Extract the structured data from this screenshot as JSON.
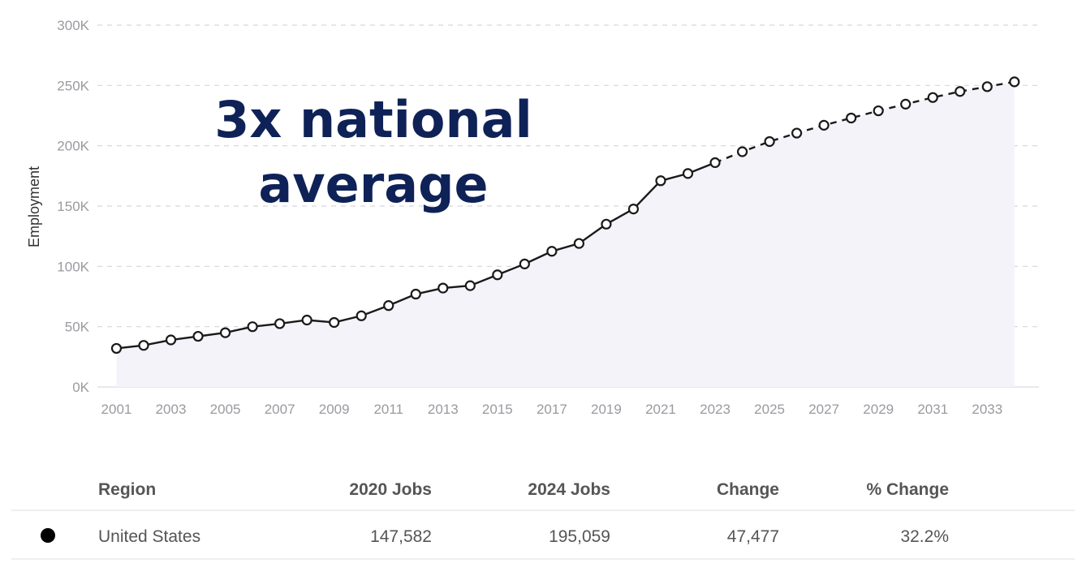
{
  "chart_data": {
    "type": "line",
    "ylabel": "Employment",
    "ylim": [
      0,
      300000
    ],
    "yticks": [
      "0K",
      "50K",
      "100K",
      "150K",
      "200K",
      "250K",
      "300K"
    ],
    "xticks": [
      "2001",
      "2003",
      "2005",
      "2007",
      "2009",
      "2011",
      "2013",
      "2015",
      "2017",
      "2019",
      "2021",
      "2023",
      "2025",
      "2027",
      "2029",
      "2031",
      "2033"
    ],
    "grid": true,
    "annotation": [
      "3x national",
      "average"
    ],
    "series": [
      {
        "style": "solid",
        "x": [
          2001,
          2002,
          2003,
          2004,
          2005,
          2006,
          2007,
          2008,
          2009,
          2010,
          2011,
          2012,
          2013,
          2014,
          2015,
          2016,
          2017,
          2018,
          2019,
          2020,
          2021,
          2022,
          2023
        ],
        "values": [
          32000,
          34500,
          39000,
          42000,
          45000,
          50000,
          52500,
          55500,
          53500,
          59000,
          67500,
          77000,
          82000,
          84000,
          93000,
          102000,
          112500,
          119000,
          135000,
          147582,
          171000,
          177000,
          186000
        ]
      },
      {
        "style": "dashed",
        "x": [
          2023,
          2024,
          2025,
          2026,
          2027,
          2028,
          2029,
          2030,
          2031,
          2032,
          2033,
          2034
        ],
        "values": [
          186000,
          195059,
          203500,
          210500,
          217000,
          223000,
          229000,
          234500,
          240000,
          245000,
          249000,
          253000
        ]
      }
    ]
  },
  "table": {
    "headers": {
      "region": "Region",
      "jobs_2020": "2020 Jobs",
      "jobs_2024": "2024 Jobs",
      "change": "Change",
      "pct_change": "% Change"
    },
    "rows": [
      {
        "region": "United States",
        "jobs_2020": "147,582",
        "jobs_2024": "195,059",
        "change": "47,477",
        "pct_change": "32.2%",
        "marker_color": "#000000"
      }
    ]
  }
}
